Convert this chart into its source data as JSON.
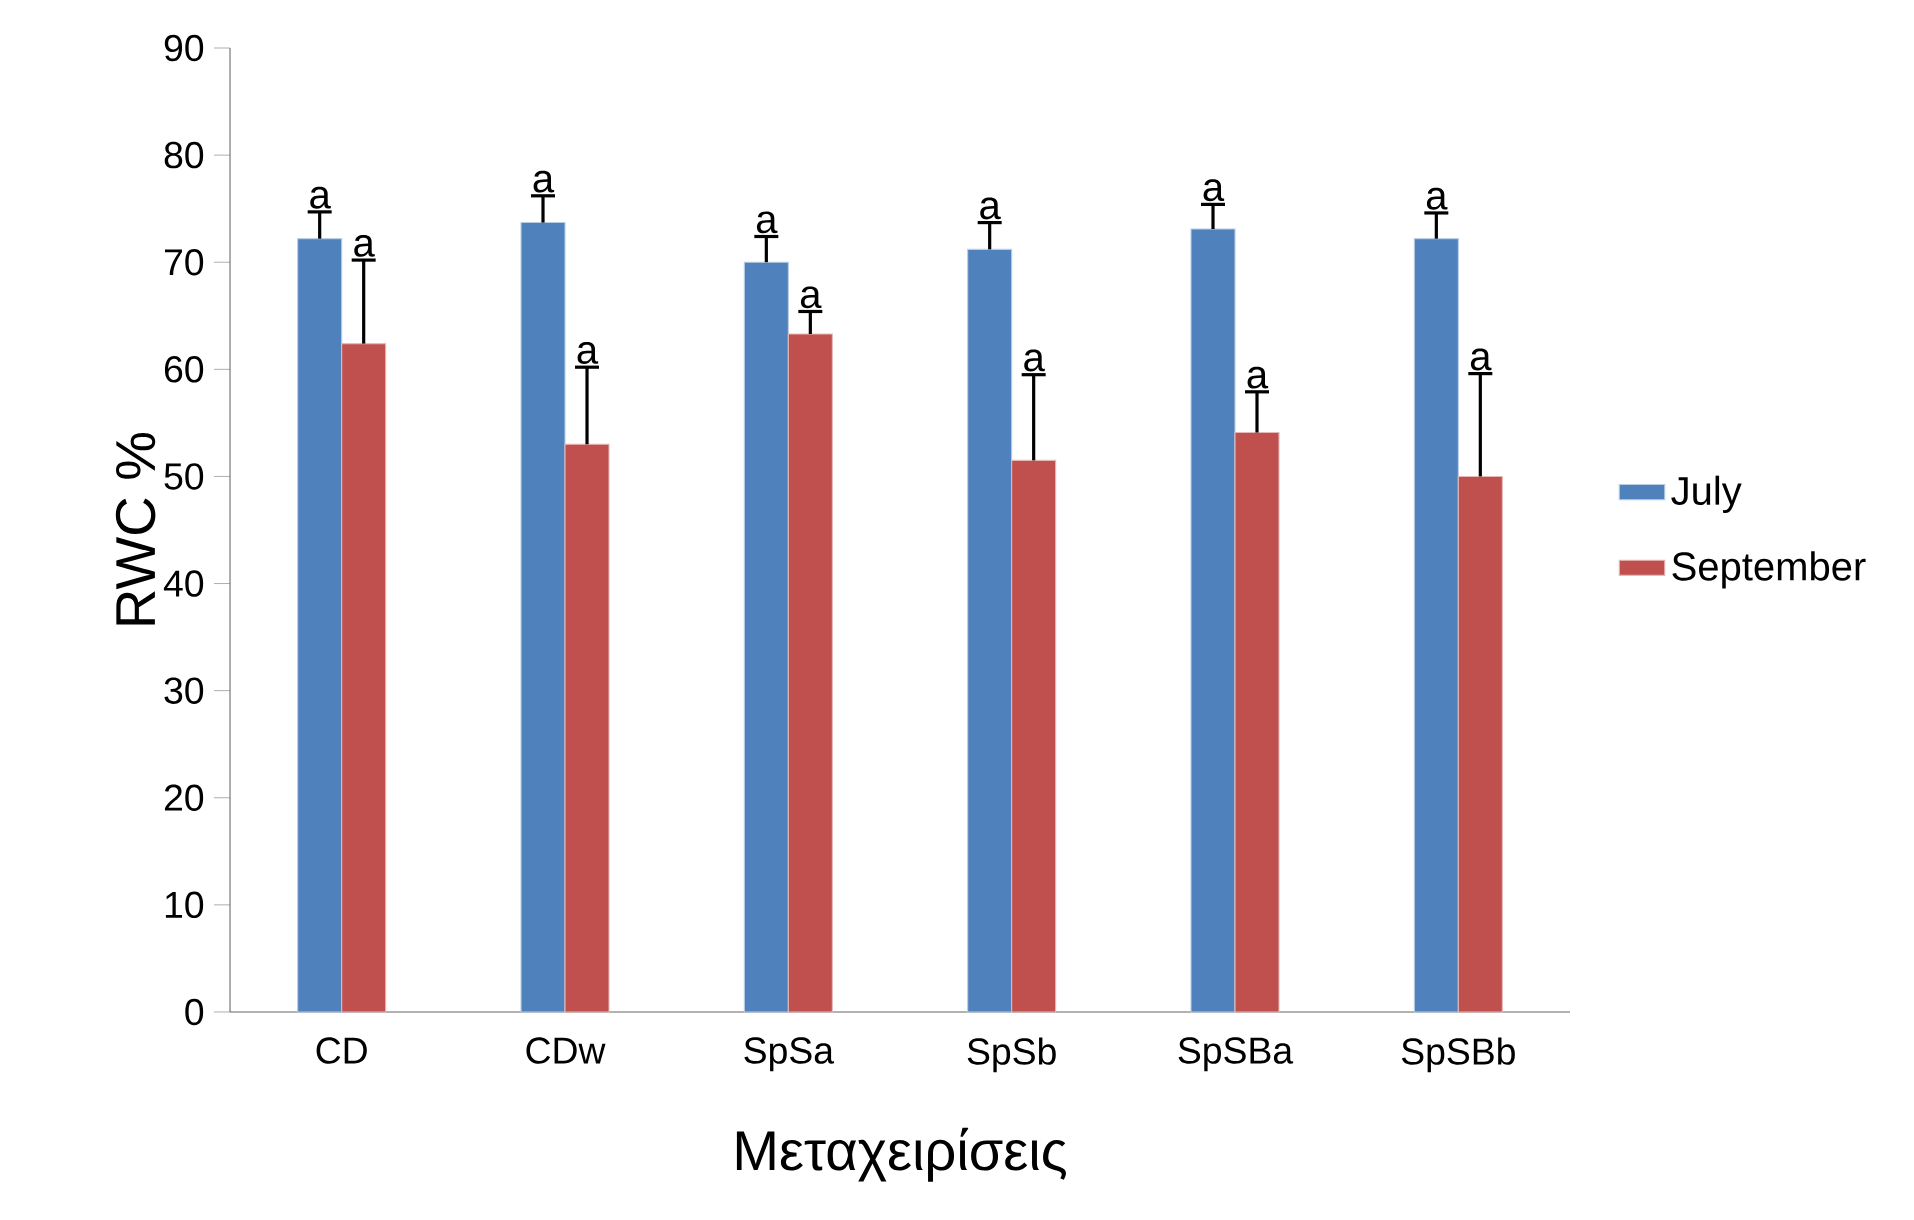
{
  "chart_data": {
    "type": "bar",
    "xlabel": "Μεταχειρίσεις",
    "ylabel": "RWC %",
    "categories": [
      "CD",
      "CDw",
      "SpSa",
      "SpSb",
      "SpSBa",
      "SpSBb"
    ],
    "series": [
      {
        "name": "July",
        "color": "#4f81bd",
        "values": [
          72.2,
          73.7,
          70.0,
          71.2,
          73.1,
          72.2
        ],
        "errors": [
          [
            72.2,
            74.7
          ],
          [
            73.7,
            76.2
          ],
          [
            70.0,
            72.4
          ],
          [
            71.2,
            73.7
          ],
          [
            73.1,
            75.4
          ],
          [
            72.2,
            74.6
          ]
        ],
        "value_labels": [
          "a",
          "a",
          "a",
          "a",
          "a",
          "a"
        ]
      },
      {
        "name": "September",
        "color": "#c0504d",
        "values": [
          62.4,
          53.0,
          63.3,
          51.5,
          54.1,
          50.0
        ],
        "errors": [
          [
            62.4,
            70.2
          ],
          [
            53.0,
            60.2
          ],
          [
            63.3,
            65.4
          ],
          [
            51.5,
            59.5
          ],
          [
            54.1,
            57.9
          ],
          [
            50.0,
            59.6
          ]
        ],
        "value_labels": [
          "a",
          "a",
          "a",
          "a",
          "a",
          "a"
        ]
      }
    ],
    "ylim": [
      0,
      90
    ],
    "yticks": [
      0,
      10,
      20,
      30,
      40,
      50,
      60,
      70,
      80,
      90
    ],
    "grid": false,
    "legend": "right"
  }
}
